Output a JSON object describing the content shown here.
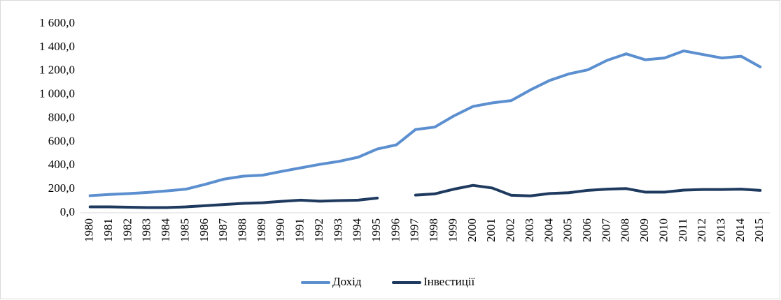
{
  "chart_data": {
    "type": "line",
    "categories": [
      "1980",
      "1981",
      "1982",
      "1983",
      "1984",
      "1985",
      "1986",
      "1987",
      "1988",
      "1989",
      "1990",
      "1991",
      "1992",
      "1993",
      "1994",
      "1995",
      "1996",
      "1997",
      "1998",
      "1999",
      "2000",
      "2001",
      "2002",
      "2003",
      "2004",
      "2005",
      "2006",
      "2007",
      "2008",
      "2009",
      "2010",
      "2011",
      "2012",
      "2013",
      "2014",
      "2015"
    ],
    "series": [
      {
        "name": "Дохід",
        "color": "#5b8fcf",
        "values": [
          145,
          155,
          162,
          172,
          185,
          200,
          240,
          285,
          310,
          318,
          350,
          380,
          410,
          435,
          470,
          540,
          575,
          705,
          725,
          820,
          900,
          930,
          950,
          1040,
          1120,
          1175,
          1210,
          1290,
          1345,
          1295,
          1310,
          1370,
          1340,
          1310,
          1325,
          1235
        ]
      },
      {
        "name": "Інвестиції",
        "color": "#1f3a5f",
        "values": [
          50,
          50,
          47,
          44,
          44,
          50,
          60,
          70,
          80,
          85,
          97,
          107,
          98,
          103,
          107,
          125,
          null,
          150,
          160,
          200,
          232,
          210,
          148,
          143,
          163,
          170,
          190,
          200,
          205,
          175,
          175,
          192,
          197,
          197,
          200,
          190
        ]
      }
    ],
    "ylim": [
      0,
      1600
    ],
    "yticks": [
      {
        "value": 0,
        "label": "0,0"
      },
      {
        "value": 200,
        "label": "200,0"
      },
      {
        "value": 400,
        "label": "400,0"
      },
      {
        "value": 600,
        "label": "600,0"
      },
      {
        "value": 800,
        "label": "800,0"
      },
      {
        "value": 1000,
        "label": "1 000,0"
      },
      {
        "value": 1200,
        "label": "1 200,0"
      },
      {
        "value": 1400,
        "label": "1 400,0"
      },
      {
        "value": 1600,
        "label": "1 600,0"
      }
    ],
    "grid": false,
    "legend": "bottom"
  }
}
